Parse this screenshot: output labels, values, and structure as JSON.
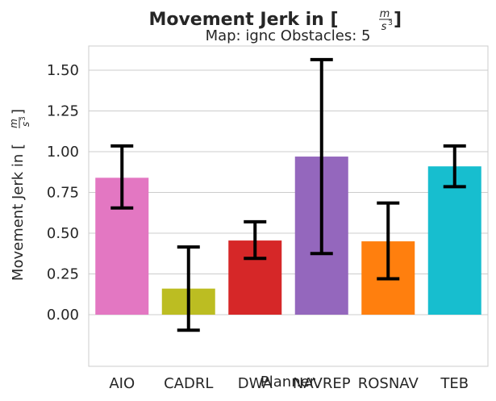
{
  "chart_data": {
    "type": "bar",
    "title": "Movement Jerk in [",
    "title_fraction": {
      "numerator": "m",
      "denominator": "s",
      "exponent": "3"
    },
    "title_suffix": "]",
    "subtitle": "Map: ignc Obstacles: 5",
    "xlabel": "Planner",
    "ylabel": "Movement Jerk in [",
    "ylabel_fraction": {
      "numerator": "m",
      "denominator": "s",
      "exponent": "3"
    },
    "ylabel_suffix": "]",
    "categories": [
      "AIO",
      "CADRL",
      "DWA",
      "NAVREP",
      "ROSNAV",
      "TEB"
    ],
    "values": [
      0.84,
      0.16,
      0.455,
      0.97,
      0.45,
      0.91
    ],
    "error_low": [
      0.655,
      -0.095,
      0.345,
      0.375,
      0.22,
      0.785
    ],
    "error_high": [
      1.035,
      0.415,
      0.57,
      1.565,
      0.685,
      1.035
    ],
    "colors": [
      "#e377c2",
      "#bcbd22",
      "#d62728",
      "#9467bd",
      "#ff7f0e",
      "#17becf"
    ],
    "yticks": [
      "0.00",
      "0.25",
      "0.50",
      "0.75",
      "1.00",
      "1.25",
      "1.50"
    ],
    "ylim": [
      -0.18,
      1.65
    ],
    "grid": true,
    "legend": "none"
  }
}
